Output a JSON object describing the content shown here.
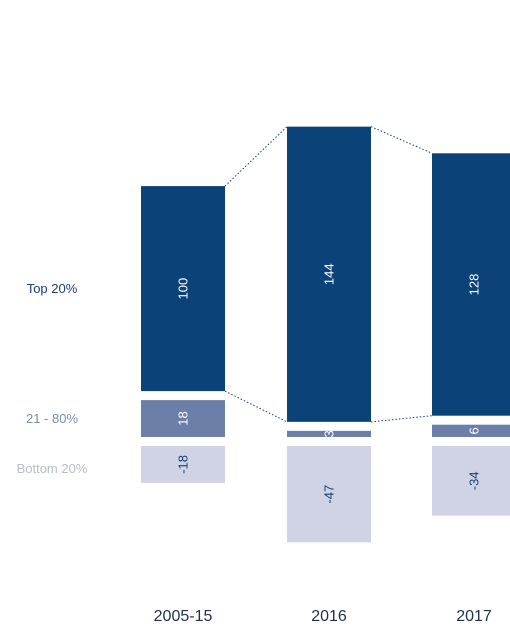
{
  "chart_data": {
    "type": "bar",
    "stacked": true,
    "categories": [
      "2005-15",
      "2016",
      "2017"
    ],
    "series": [
      {
        "name": "Top 20%",
        "values": [
          100,
          144,
          128
        ]
      },
      {
        "name": "21 - 80%",
        "values": [
          18,
          3,
          6
        ]
      },
      {
        "name": "Bottom 20%",
        "values": [
          -18,
          -47,
          -34
        ]
      }
    ],
    "title": "",
    "xlabel": "",
    "ylabel": "",
    "grid": false,
    "legend": "left",
    "colors": {
      "Top 20%": "#0b4277",
      "21 - 80%": "#6c7fa8",
      "Bottom 20%": "#d0d3e6",
      "Top 20% label": "#1a3f73",
      "21 - 80% label": "#7c8db0",
      "Bottom 20% label": "#b7bccb",
      "connector": "#0b4277",
      "category_label": "#1f2f4f"
    }
  }
}
